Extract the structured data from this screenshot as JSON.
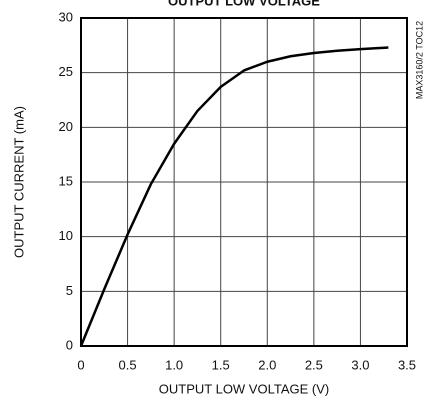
{
  "chart_data": {
    "type": "line",
    "title": "OUTPUT LOW VOLTAGE",
    "annotation": "MAX3160/2 TOC12",
    "xlabel": "OUTPUT LOW VOLTAGE (V)",
    "ylabel": "OUTPUT CURRENT (mA)",
    "x": [
      0,
      0.25,
      0.5,
      0.75,
      1.0,
      1.25,
      1.5,
      1.75,
      2.0,
      2.25,
      2.5,
      2.75,
      3.0,
      3.3
    ],
    "series": [
      {
        "color": "#000000",
        "values": [
          0,
          5.2,
          10.2,
          14.8,
          18.5,
          21.5,
          23.7,
          25.2,
          26.0,
          26.5,
          26.8,
          27.0,
          27.15,
          27.3
        ]
      }
    ],
    "xlim": [
      0,
      3.5
    ],
    "xticks": [
      0,
      0.5,
      {
        "value": 1,
        "label": "1.0"
      },
      1.5,
      {
        "value": 2,
        "label": "2.0"
      },
      2.5,
      {
        "value": 3,
        "label": "3.0"
      },
      3.5
    ],
    "ylim": [
      0,
      30
    ],
    "yticks": [
      0,
      5,
      10,
      15,
      20,
      25,
      30
    ],
    "grid": true
  }
}
